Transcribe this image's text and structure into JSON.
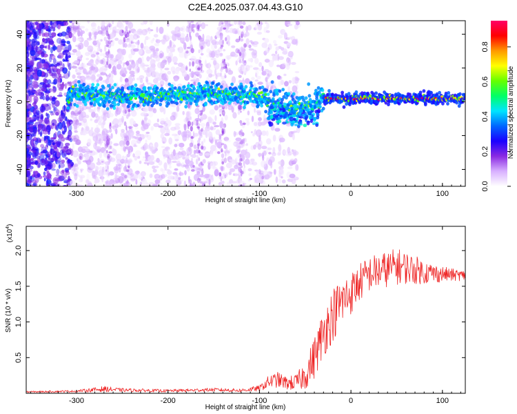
{
  "title": "C2E4.2025.037.04.43.G10",
  "chart_data": [
    {
      "type": "heatmap",
      "xlabel": "Height of straight line (km)",
      "ylabel": "Frequency (Hz)",
      "xlim": [
        -355,
        125
      ],
      "ylim": [
        -50,
        48
      ],
      "x_ticks": [
        -300,
        -200,
        -100,
        0,
        100
      ],
      "y_ticks": [
        -40,
        -20,
        0,
        20,
        40
      ],
      "colorbar": {
        "label": "Normalized spectral amplitude",
        "range": [
          0,
          0.95
        ],
        "ticks": [
          0.0,
          0.2,
          0.4,
          0.6,
          0.8
        ],
        "tick_labels": [
          "0.0",
          "0.2",
          "0.4",
          "0.6",
          "0.8"
        ],
        "colors": [
          "#ffffff",
          "#d8b0ff",
          "#8a2be2",
          "#1a00ff",
          "#0066ff",
          "#00e5ff",
          "#00ff66",
          "#66ff00",
          "#ffff00",
          "#ff9900",
          "#ff0000",
          "#ff0066"
        ]
      },
      "ridge_frequency_points": [
        {
          "x": -305,
          "y": 5
        },
        {
          "x": -250,
          "y": 3
        },
        {
          "x": -200,
          "y": 4
        },
        {
          "x": -150,
          "y": 5
        },
        {
          "x": -110,
          "y": 4
        },
        {
          "x": -80,
          "y": 0
        },
        {
          "x": -60,
          "y": -4
        },
        {
          "x": -40,
          "y": -3
        },
        {
          "x": -30,
          "y": 2
        },
        {
          "x": 0,
          "y": 2
        },
        {
          "x": 50,
          "y": 2
        },
        {
          "x": 125,
          "y": 2
        }
      ]
    },
    {
      "type": "line",
      "xlabel": "Height of straight line (km)",
      "ylabel": "SNR (10 * v/v)",
      "y_multiplier_label": "(x10",
      "y_multiplier_exp": "4",
      "y_multiplier_close": ")",
      "xlim": [
        -355,
        125
      ],
      "ylim": [
        0,
        23400
      ],
      "x_ticks": [
        -300,
        -200,
        -100,
        0,
        100
      ],
      "y_ticks": [
        5000,
        10000,
        15000,
        20000
      ],
      "y_tick_labels": [
        "0.5",
        "1.0",
        "1.5",
        "2.0"
      ],
      "series": [
        {
          "color": "#ee2222",
          "envelope_x": [
            -355,
            -300,
            -270,
            -250,
            -200,
            -150,
            -120,
            -100,
            -90,
            -80,
            -70,
            -60,
            -50,
            -40,
            -30,
            -20,
            -10,
            0,
            10,
            20,
            30,
            40,
            50,
            60,
            70,
            80,
            90,
            100,
            110,
            125
          ],
          "envelope_y": [
            200,
            300,
            600,
            450,
            350,
            500,
            400,
            700,
            1600,
            1900,
            1400,
            1500,
            2500,
            5000,
            8500,
            11000,
            12800,
            14000,
            15600,
            16700,
            17100,
            17400,
            17800,
            17600,
            17300,
            17000,
            16800,
            16700,
            16600,
            16500
          ],
          "noise_y": [
            100,
            150,
            400,
            250,
            200,
            250,
            250,
            400,
            900,
            1100,
            900,
            1200,
            2000,
            3000,
            3500,
            3800,
            3500,
            3000,
            2700,
            2500,
            2600,
            2500,
            2600,
            2300,
            2000,
            1700,
            1400,
            1100,
            900,
            700
          ]
        }
      ]
    }
  ]
}
